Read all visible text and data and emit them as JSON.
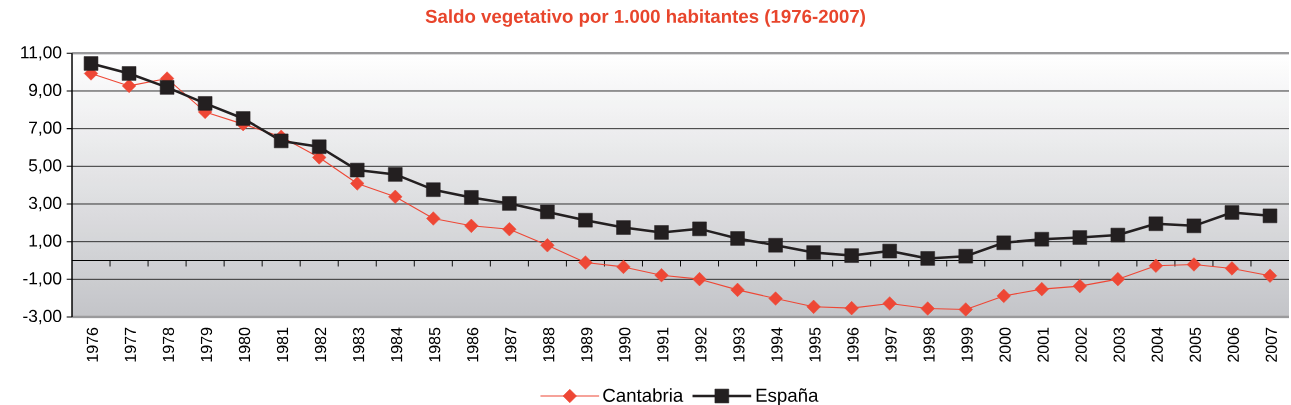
{
  "chart_data": {
    "type": "line",
    "title": "Saldo vegetativo por 1.000 habitantes (1976-2007)",
    "categories": [
      "1976",
      "1977",
      "1978",
      "1979",
      "1980",
      "1981",
      "1982",
      "1983",
      "1984",
      "1985",
      "1986",
      "1987",
      "1988",
      "1989",
      "1990",
      "1991",
      "1992",
      "1993",
      "1994",
      "1995",
      "1996",
      "1997",
      "1998",
      "1999",
      "2000",
      "2001",
      "2002",
      "2003",
      "2004",
      "2005",
      "2006",
      "2007"
    ],
    "series": [
      {
        "name": "Cantabria",
        "color": "#ee4735",
        "marker": "diamond",
        "values": [
          9.93,
          9.27,
          9.66,
          7.89,
          7.24,
          6.57,
          5.47,
          4.09,
          3.38,
          2.23,
          1.84,
          1.66,
          0.81,
          -0.11,
          -0.34,
          -0.78,
          -0.99,
          -1.56,
          -2.02,
          -2.46,
          -2.53,
          -2.28,
          -2.55,
          -2.6,
          -1.88,
          -1.52,
          -1.36,
          -0.99,
          -0.28,
          -0.21,
          -0.42,
          -0.81
        ]
      },
      {
        "name": "España",
        "color": "#231f20",
        "marker": "square",
        "values": [
          10.46,
          9.93,
          9.19,
          8.34,
          7.54,
          6.35,
          6.04,
          4.8,
          4.57,
          3.76,
          3.35,
          3.03,
          2.58,
          2.14,
          1.75,
          1.49,
          1.68,
          1.17,
          0.81,
          0.42,
          0.26,
          0.5,
          0.11,
          0.23,
          0.94,
          1.13,
          1.22,
          1.35,
          1.95,
          1.84,
          2.55,
          2.37
        ]
      }
    ],
    "ylim": [
      -3,
      11
    ],
    "yticks": [
      {
        "value": -3,
        "label": "-3,00"
      },
      {
        "value": -1,
        "label": "-1,00"
      },
      {
        "value": 1,
        "label": "1,00"
      },
      {
        "value": 3,
        "label": "3,00"
      },
      {
        "value": 5,
        "label": "5,00"
      },
      {
        "value": 7,
        "label": "7,00"
      },
      {
        "value": 9,
        "label": "9,00"
      },
      {
        "value": 11,
        "label": "11,00"
      }
    ],
    "grid": "y",
    "legend": "bottom"
  }
}
